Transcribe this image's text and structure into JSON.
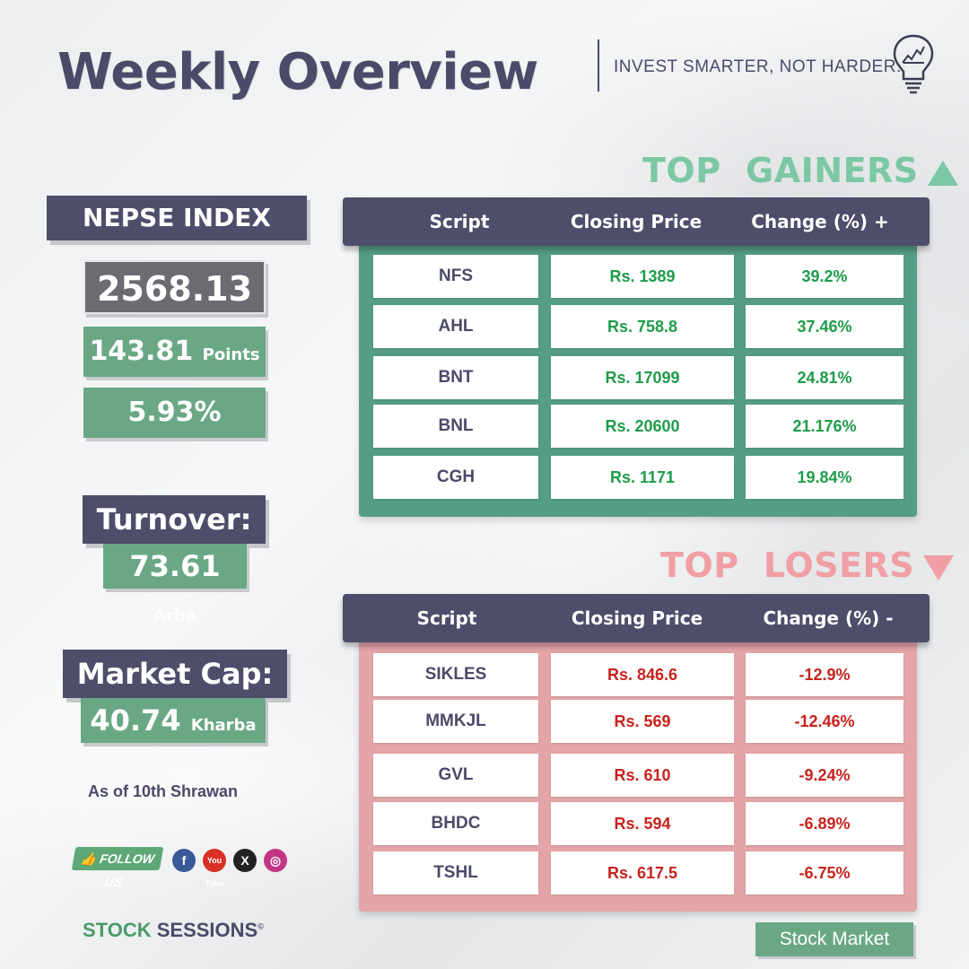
{
  "header": {
    "title": "Weekly Overview",
    "tagline": "INVEST SMARTER, NOT HARDER."
  },
  "nepse": {
    "label": "NEPSE INDEX",
    "index_value": "2568.13",
    "points_value": "143.81",
    "points_unit": "Points",
    "percent_change": "5.93%"
  },
  "turnover": {
    "label": "Turnover:",
    "value": "73.61",
    "unit": "Arba"
  },
  "market_cap": {
    "label": "Market Cap:",
    "value": "40.74",
    "unit": "Kharba"
  },
  "as_of": "As of 10th Shrawan",
  "social": {
    "follow_label": "FOLLOW US",
    "facebook_glyph": "f",
    "youtube_glyph": "You Tube",
    "x_glyph": "X",
    "instagram_glyph": "◎",
    "icons": [
      "facebook-icon",
      "youtube-icon",
      "x-icon",
      "instagram-icon"
    ]
  },
  "brand": {
    "part1": "STOCK",
    "part2": "SESSIONS",
    "mark": "©"
  },
  "category_tag": "Stock Market",
  "gainers": {
    "title": "TOP  GAINERS",
    "headers": [
      "Script",
      "Closing Price",
      "Change (%) +"
    ],
    "rows": [
      {
        "script": "NFS",
        "price": "Rs. 1389",
        "change": "39.2%"
      },
      {
        "script": "AHL",
        "price": "Rs. 758.8",
        "change": "37.46%"
      },
      {
        "script": "BNT",
        "price": "Rs. 17099",
        "change": "24.81%"
      },
      {
        "script": "BNL",
        "price": "Rs. 20600",
        "change": "21.176%"
      },
      {
        "script": "CGH",
        "price": "Rs. 1171",
        "change": "19.84%"
      }
    ]
  },
  "losers": {
    "title": "TOP  LOSERS",
    "headers": [
      "Script",
      "Closing Price",
      "Change (%) -"
    ],
    "rows": [
      {
        "script": "SIKLES",
        "price": "Rs. 846.6",
        "change": "-12.9%"
      },
      {
        "script": "MMKJL",
        "price": "Rs. 569",
        "change": "-12.46%"
      },
      {
        "script": "GVL",
        "price": "Rs. 610",
        "change": "-9.24%"
      },
      {
        "script": "BHDC",
        "price": "Rs. 594",
        "change": "-6.89%"
      },
      {
        "script": "TSHL",
        "price": "Rs. 617.5",
        "change": "-6.75%"
      }
    ]
  },
  "colors": {
    "navy": "#4e4d6a",
    "green": "#6aa885",
    "gain_text": "#1f9c4a",
    "loss_text": "#c8221c",
    "gain_title": "#7cc8a4",
    "loss_title": "#f0a0a4"
  }
}
